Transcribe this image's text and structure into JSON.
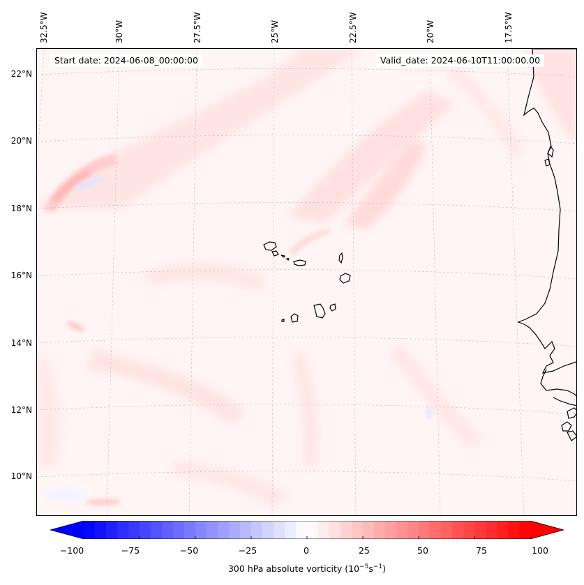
{
  "map": {
    "start_date": "Start date: 2024-06-08_00:00:00",
    "valid_date": "Valid_date: 2024-06-10T11:00:00.00",
    "lon_labels": [
      "32.5°W",
      "30°W",
      "27.5°W",
      "25°W",
      "22.5°W",
      "20°W",
      "17.5°W"
    ],
    "lat_labels": [
      "22°N",
      "20°N",
      "18°N",
      "16°N",
      "14°N",
      "12°N",
      "10°N"
    ],
    "features": [
      "Cape Verde islands",
      "West African coastline"
    ]
  },
  "colorbar": {
    "ticks": [
      "−100",
      "−75",
      "−50",
      "−25",
      "0",
      "25",
      "50",
      "75",
      "100"
    ],
    "label_main": "300 hPa absolute vorticity (10",
    "label_exp1": "−5",
    "label_mid": "s",
    "label_exp2": "−1",
    "label_end": ")",
    "min": -100,
    "max": 100,
    "colormap": "bwr",
    "low_color": "#0000ff",
    "mid_color": "#ffffff",
    "high_color": "#ff0000"
  }
}
